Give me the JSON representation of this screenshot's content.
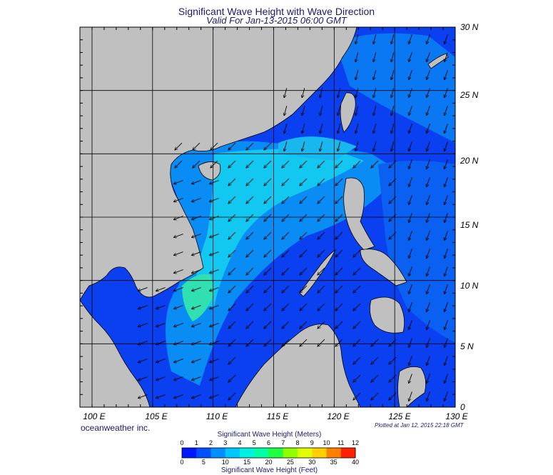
{
  "title": "Significant Wave Height with Wave Direction",
  "subtitle": "Valid For Jan-13-2015 06:00 GMT",
  "latitude_labels": [
    "30 N",
    "25 N",
    "20 N",
    "15 N",
    "10 N",
    "5 N",
    "0"
  ],
  "longitude_labels": [
    "100 E",
    "105 E",
    "110 E",
    "115 E",
    "120 E",
    "125 E",
    "130 E"
  ],
  "company": "oceanweather inc.",
  "plotted_at": "Plotted at Jan 12, 2015 22:18 GMT",
  "colorbar": {
    "title_meters": "Significant Wave Height (Meters)",
    "title_feet": "Significant Wave Height (Feet)",
    "meter_ticks": [
      "0",
      "1",
      "2",
      "3",
      "4",
      "5",
      "6",
      "7",
      "8",
      "9",
      "10",
      "11",
      "12"
    ],
    "feet_ticks": [
      "0",
      "5",
      "10",
      "15",
      "20",
      "25",
      "30",
      "35",
      "40"
    ],
    "colors": [
      "#0018ff",
      "#0050ff",
      "#0090ff",
      "#00c8ff",
      "#00f0e0",
      "#00ffa0",
      "#20ff40",
      "#90ff00",
      "#e0ff00",
      "#ffd000",
      "#ff8000",
      "#ff2000"
    ]
  },
  "map": {
    "lon_range": [
      99,
      130
    ],
    "lat_range": [
      0,
      30
    ],
    "land_color": "#c0c0c0",
    "graticule_step_deg": 5
  }
}
